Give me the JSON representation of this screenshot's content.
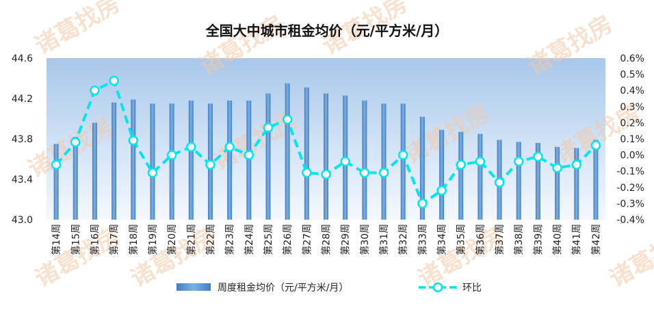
{
  "chart_data": {
    "type": "bar+line",
    "title": "全国大中城市租金均价（元/平方米/月）",
    "categories": [
      "第14周",
      "第15周",
      "第16周",
      "第17周",
      "第18周",
      "第19周",
      "第20周",
      "第21周",
      "第22周",
      "第23周",
      "第24周",
      "第25周",
      "第26周",
      "第27周",
      "第28周",
      "第29周",
      "第30周",
      "第31周",
      "第32周",
      "第33周",
      "第34周",
      "第35周",
      "第36周",
      "第37周",
      "第38周",
      "第39周",
      "第40周",
      "第41周",
      "第42周"
    ],
    "series": [
      {
        "name": "周度租金均价（元/平方米/月）",
        "type": "bar",
        "axis": "left",
        "color": "#5b9bd5",
        "values": [
          43.75,
          43.82,
          43.96,
          44.16,
          44.19,
          44.15,
          44.15,
          44.18,
          44.15,
          44.18,
          44.18,
          44.25,
          44.35,
          44.31,
          44.25,
          44.23,
          44.18,
          44.15,
          44.15,
          44.02,
          43.89,
          43.87,
          43.85,
          43.79,
          43.77,
          43.76,
          43.72,
          43.71,
          43.79
        ]
      },
      {
        "name": "环比",
        "type": "line",
        "axis": "right",
        "color": "#00e5ee",
        "values": [
          -0.06,
          0.08,
          0.4,
          0.46,
          0.09,
          -0.11,
          0.0,
          0.05,
          -0.06,
          0.05,
          0.0,
          0.17,
          0.22,
          -0.11,
          -0.12,
          -0.04,
          -0.11,
          -0.11,
          0.0,
          -0.3,
          -0.22,
          -0.06,
          -0.04,
          -0.17,
          -0.04,
          -0.01,
          -0.08,
          -0.06,
          0.06
        ]
      }
    ],
    "y_left": {
      "ylim": [
        43.0,
        44.6
      ],
      "ticks": [
        "43.0",
        "43.4",
        "43.8",
        "44.2",
        "44.6"
      ]
    },
    "y_right": {
      "ylim": [
        -0.4,
        0.6
      ],
      "ticks": [
        "-0.4%",
        "-0.3%",
        "-0.2%",
        "-0.1%",
        "0.0%",
        "0.1%",
        "0.2%",
        "0.3%",
        "0.4%",
        "0.5%",
        "0.6%"
      ]
    },
    "legend": {
      "position": "bottom"
    },
    "grid": false
  },
  "watermark": {
    "text": "诸葛找房",
    "color": "#f2c9a8"
  }
}
